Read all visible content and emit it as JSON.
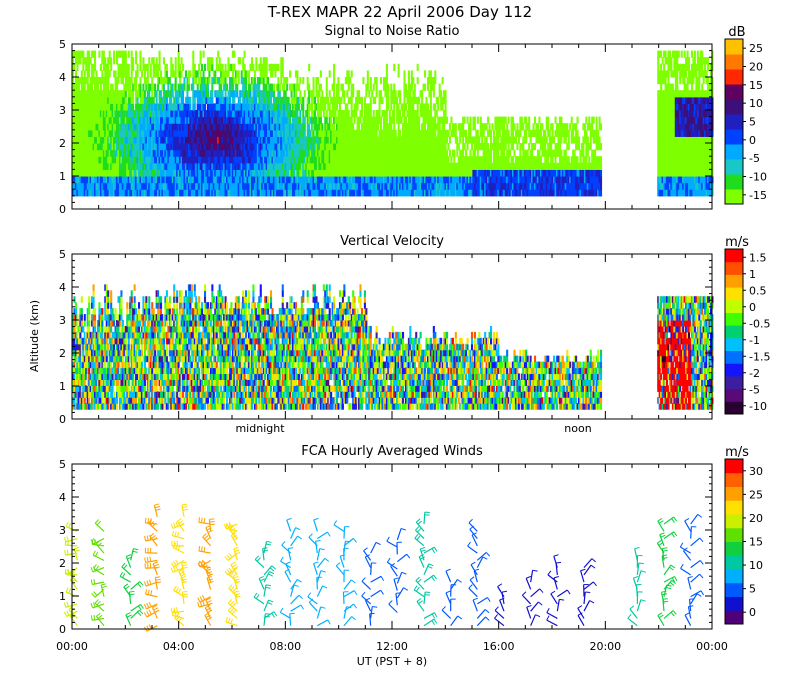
{
  "figure": {
    "title": "T-REX  MAPR 22 April 2006 Day 112",
    "xlabel": "UT  (PST + 8)",
    "ylabel": "Altitude (km)",
    "x_ticks": [
      "00:00",
      "04:00",
      "08:00",
      "12:00",
      "16:00",
      "20:00",
      "00:00"
    ],
    "night_label": "midnight",
    "noon_label": "noon"
  },
  "chart_data": [
    {
      "type": "heatmap",
      "title": "Signal to Noise Ratio",
      "unit": "dB",
      "ylim": [
        0,
        5
      ],
      "y_ticks": [
        "0",
        "1",
        "2",
        "3",
        "4",
        "5"
      ],
      "xlim_hours": [
        0,
        24
      ],
      "colorbar_ticks": [
        "-15",
        "-10",
        "-5",
        "0",
        "5",
        "10",
        "15",
        "20",
        "25"
      ],
      "colors": [
        "#7fff00",
        "#1fdc1f",
        "#18c8c8",
        "#00aaff",
        "#0040ff",
        "#2020c0",
        "#3c1078",
        "#600060",
        "#ff2800",
        "#ff7800",
        "#ffc000"
      ],
      "data_gap_hours": [
        19.8,
        21.9
      ]
    },
    {
      "type": "heatmap",
      "title": "Vertical Velocity",
      "unit": "m/s",
      "ylim": [
        0,
        5
      ],
      "y_ticks": [
        "0",
        "1",
        "2",
        "3",
        "4",
        "5"
      ],
      "xlim_hours": [
        0,
        24
      ],
      "colorbar_ticks": [
        "-10",
        "-5",
        "-2",
        "-1.5",
        "-1",
        "-0.5",
        "0",
        "0.5",
        "1",
        "1.5"
      ],
      "colors": [
        "#2a0030",
        "#5a0a78",
        "#3c1ea0",
        "#1414ff",
        "#0070ff",
        "#00c0ff",
        "#00d070",
        "#40ff00",
        "#c0ff00",
        "#ffe000",
        "#ffa000",
        "#ff5000",
        "#ff0000"
      ],
      "data_gap_hours": [
        19.8,
        21.9
      ]
    },
    {
      "type": "scatter",
      "title": "FCA Hourly Averaged Winds",
      "unit": "m/s",
      "ylim": [
        0,
        5
      ],
      "y_ticks": [
        "0",
        "1",
        "2",
        "3",
        "4",
        "5"
      ],
      "xlim_hours": [
        0,
        24
      ],
      "colorbar_ticks": [
        "0",
        "5",
        "10",
        "15",
        "20",
        "25",
        "30"
      ],
      "colors": [
        "#500078",
        "#1010d0",
        "#0058ff",
        "#00b0ff",
        "#00c8a0",
        "#10d040",
        "#60e000",
        "#c8f000",
        "#ffe000",
        "#ffa000",
        "#ff6000",
        "#ff0000"
      ],
      "barb_columns": [
        {
          "hour": 0.5,
          "alt_range": [
            0.1,
            3.0
          ],
          "speed": 18
        },
        {
          "hour": 1.5,
          "alt_range": [
            0.1,
            3.0
          ],
          "speed": 16
        },
        {
          "hour": 2.5,
          "alt_range": [
            0.1,
            2.3
          ],
          "speed": 14
        },
        {
          "hour": 3.5,
          "alt_range": [
            0.1,
            3.6
          ],
          "speed": 24
        },
        {
          "hour": 4.5,
          "alt_range": [
            0.1,
            3.6
          ],
          "speed": 22
        },
        {
          "hour": 5.5,
          "alt_range": [
            0.1,
            3.4
          ],
          "speed": 25
        },
        {
          "hour": 6.5,
          "alt_range": [
            0.1,
            3.3
          ],
          "speed": 23
        },
        {
          "hour": 7.5,
          "alt_range": [
            0.1,
            2.5
          ],
          "speed": 12
        },
        {
          "hour": 8.5,
          "alt_range": [
            0.1,
            3.1
          ],
          "speed": 9
        },
        {
          "hour": 9.5,
          "alt_range": [
            0.1,
            3.1
          ],
          "speed": 8
        },
        {
          "hour": 10.5,
          "alt_range": [
            0.1,
            3.0
          ],
          "speed": 7
        },
        {
          "hour": 11.5,
          "alt_range": [
            0.1,
            2.5
          ],
          "speed": 6
        },
        {
          "hour": 12.5,
          "alt_range": [
            0.5,
            2.9
          ],
          "speed": 5
        },
        {
          "hour": 13.5,
          "alt_range": [
            0.1,
            3.4
          ],
          "speed": 12
        },
        {
          "hour": 14.5,
          "alt_range": [
            0.1,
            1.6
          ],
          "speed": 5
        },
        {
          "hour": 15.5,
          "alt_range": [
            0.1,
            3.0
          ],
          "speed": 6
        },
        {
          "hour": 16.5,
          "alt_range": [
            0.1,
            1.0
          ],
          "speed": 3
        },
        {
          "hour": 17.5,
          "alt_range": [
            0.1,
            1.6
          ],
          "speed": 3
        },
        {
          "hour": 18.5,
          "alt_range": [
            0.1,
            1.9
          ],
          "speed": 2
        },
        {
          "hour": 19.5,
          "alt_range": [
            0.1,
            1.9
          ],
          "speed": 4
        },
        {
          "hour": 21.5,
          "alt_range": [
            0.1,
            2.2
          ],
          "speed": 11
        },
        {
          "hour": 22.5,
          "alt_range": [
            0.1,
            3.3
          ],
          "speed": 14
        },
        {
          "hour": 23.5,
          "alt_range": [
            0.1,
            3.4
          ],
          "speed": 6
        }
      ]
    }
  ]
}
